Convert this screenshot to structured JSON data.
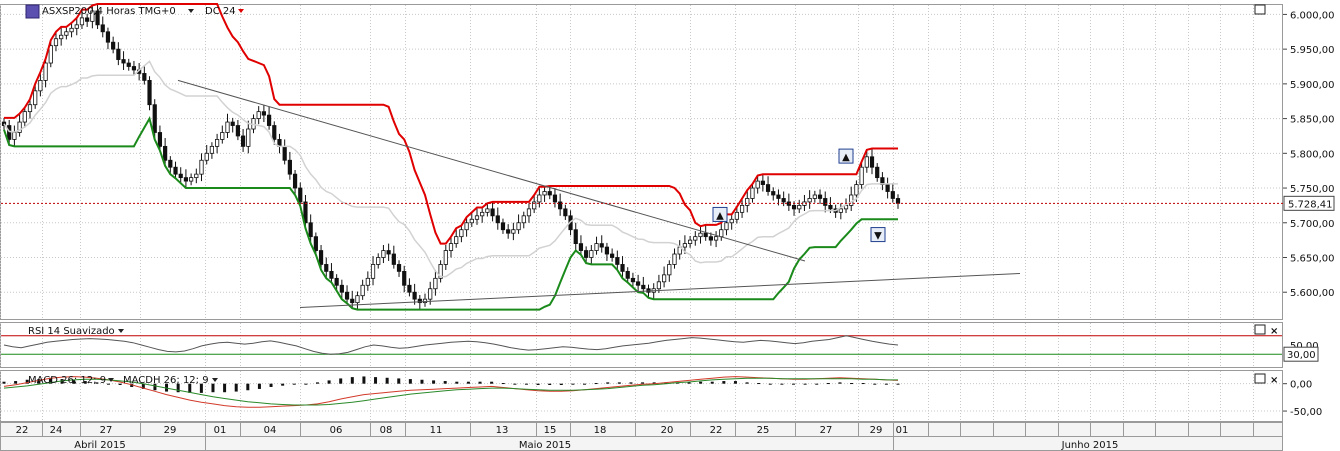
{
  "header": {
    "symbol": "ASXSP200,4 Horas TMG+0",
    "indicator": "DC 24",
    "indicator_color": "#e00000",
    "price_tag": "5.728,41"
  },
  "panes": {
    "rsi": {
      "label": "RSI 14 Suavizado",
      "levels": [
        70,
        30
      ],
      "level_tag": "30,00"
    },
    "macd": {
      "label": "MACD 26; 12; 9",
      "label2": "MACDH 26; 12; 9"
    }
  },
  "colors": {
    "upper_channel": "#e00000",
    "lower_channel": "#1a8a1a",
    "middle_channel": "#d2d2d2",
    "candles": "#111111",
    "macd_line": "#d23a2a",
    "signal_line": "#2a8a2a",
    "rsi_line": "#555555",
    "grid": "#c8c8c8"
  },
  "chart_data": [
    {
      "type": "candlestick",
      "title": "ASXSP200,4 Horas TMG+0",
      "ylim": [
        5560,
        6015
      ],
      "y_ticks": [
        "6.000,00",
        "5.950,00",
        "5.900,00",
        "5.850,00",
        "5.800,00",
        "5.750,00",
        "5.700,00",
        "5.650,00",
        "5.600,00"
      ],
      "y_tick_values": [
        6000,
        5950,
        5900,
        5850,
        5800,
        5750,
        5700,
        5650,
        5600
      ],
      "x_ticks": [
        "22",
        "24",
        "27",
        "29",
        "01",
        "04",
        "06",
        "08",
        "11",
        "13",
        "15",
        "18",
        "20",
        "22",
        "25",
        "27",
        "29",
        "01"
      ],
      "months": [
        "Abril 2015",
        "Maio 2015",
        "Junho 2015"
      ],
      "close": [
        5840,
        5820,
        5830,
        5845,
        5860,
        5870,
        5890,
        5905,
        5930,
        5955,
        5965,
        5970,
        5975,
        5980,
        5985,
        5995,
        5990,
        6005,
        5985,
        5975,
        5960,
        5950,
        5935,
        5930,
        5925,
        5920,
        5915,
        5905,
        5870,
        5830,
        5810,
        5790,
        5780,
        5770,
        5765,
        5760,
        5765,
        5770,
        5790,
        5800,
        5810,
        5820,
        5830,
        5845,
        5840,
        5825,
        5810,
        5835,
        5850,
        5860,
        5855,
        5840,
        5820,
        5810,
        5790,
        5770,
        5750,
        5730,
        5700,
        5680,
        5660,
        5640,
        5630,
        5620,
        5610,
        5600,
        5590,
        5585,
        5595,
        5610,
        5620,
        5640,
        5650,
        5660,
        5655,
        5640,
        5630,
        5610,
        5600,
        5590,
        5585,
        5590,
        5605,
        5620,
        5640,
        5660,
        5670,
        5680,
        5690,
        5700,
        5705,
        5710,
        5715,
        5720,
        5710,
        5700,
        5690,
        5685,
        5690,
        5700,
        5710,
        5720,
        5730,
        5740,
        5745,
        5740,
        5730,
        5720,
        5710,
        5690,
        5670,
        5660,
        5650,
        5660,
        5670,
        5665,
        5655,
        5650,
        5640,
        5630,
        5620,
        5615,
        5610,
        5605,
        5600,
        5605,
        5615,
        5625,
        5640,
        5655,
        5665,
        5670,
        5675,
        5680,
        5685,
        5680,
        5675,
        5680,
        5690,
        5700,
        5705,
        5715,
        5725,
        5735,
        5750,
        5760,
        5755,
        5745,
        5740,
        5735,
        5730,
        5725,
        5720,
        5725,
        5730,
        5735,
        5740,
        5735,
        5725,
        5720,
        5715,
        5720,
        5725,
        5740,
        5755,
        5780,
        5795,
        5780,
        5765,
        5755,
        5745,
        5735,
        5728
      ]
    },
    {
      "type": "line",
      "title": "RSI 14 Suavizado",
      "ylim": [
        0,
        100
      ],
      "levels": [
        70,
        30
      ],
      "values": [
        50,
        46,
        44,
        48,
        52,
        56,
        58,
        60,
        62,
        63,
        64,
        63,
        62,
        60,
        58,
        55,
        50,
        45,
        40,
        36,
        35,
        37,
        42,
        48,
        52,
        55,
        56,
        54,
        52,
        54,
        57,
        59,
        56,
        52,
        48,
        42,
        36,
        32,
        30,
        31,
        34,
        40,
        46,
        50,
        48,
        45,
        43,
        44,
        47,
        50,
        52,
        54,
        56,
        57,
        58,
        57,
        55,
        52,
        48,
        44,
        41,
        39,
        40,
        42,
        44,
        46,
        45,
        43,
        41,
        40,
        42,
        45,
        48,
        50,
        52,
        54,
        57,
        60,
        62,
        64,
        66,
        65,
        63,
        61,
        59,
        57,
        56,
        58,
        60,
        59,
        57,
        55,
        53,
        55,
        58,
        60,
        62,
        66,
        70,
        66,
        62,
        58,
        55,
        52,
        50
      ]
    },
    {
      "type": "line",
      "title": "MACD 26; 12; 9",
      "y_ticks": [
        "0,00",
        "-50,00"
      ],
      "y_tick_values": [
        0,
        -50
      ],
      "ylim": [
        -70,
        25
      ],
      "series": [
        {
          "name": "MACD 26; 12; 9",
          "values": [
            -5,
            -2,
            2,
            6,
            10,
            12,
            13,
            12,
            10,
            7,
            3,
            -2,
            -8,
            -14,
            -20,
            -25,
            -30,
            -34,
            -37,
            -40,
            -42,
            -43,
            -43,
            -42,
            -41,
            -40,
            -39,
            -37,
            -33,
            -28,
            -24,
            -20,
            -18,
            -16,
            -14,
            -12,
            -11,
            -10,
            -9,
            -8,
            -7,
            -6,
            -5,
            -7,
            -9,
            -11,
            -13,
            -14,
            -14,
            -13,
            -11,
            -9,
            -7,
            -5,
            -3,
            -1,
            0,
            2,
            4,
            6,
            8,
            10,
            12,
            13,
            12,
            11,
            10,
            9,
            8,
            8,
            9,
            10,
            11,
            10,
            9,
            8,
            7,
            6
          ]
        },
        {
          "name": "MACDH 26; 12; 9",
          "values": [
            -8,
            -6,
            -4,
            -1,
            2,
            5,
            7,
            8,
            8,
            7,
            5,
            3,
            0,
            -4,
            -8,
            -12,
            -16,
            -20,
            -24,
            -27,
            -30,
            -33,
            -35,
            -37,
            -38,
            -39,
            -39,
            -39,
            -38,
            -36,
            -34,
            -31,
            -28,
            -25,
            -22,
            -19,
            -17,
            -15,
            -13,
            -11,
            -10,
            -9,
            -8,
            -8,
            -9,
            -10,
            -11,
            -12,
            -12,
            -12,
            -11,
            -10,
            -9,
            -7,
            -5,
            -3,
            -2,
            0,
            2,
            3,
            5,
            7,
            8,
            9,
            10,
            10,
            10,
            9,
            9,
            9,
            9,
            9,
            9,
            9,
            8,
            8,
            7,
            7
          ]
        }
      ]
    }
  ]
}
